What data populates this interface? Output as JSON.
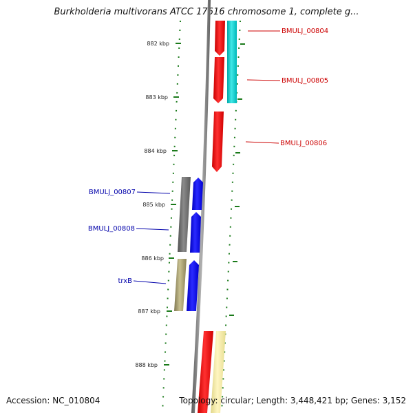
{
  "title": "Burkholderia multivorans ATCC 17616 chromosome 1, complete g...",
  "accession": "Accession: NC_010804",
  "stats": "Topology: circular; Length: 3,448,421 bp; Genes: 3,152",
  "scale_labels": [
    "882 kbp",
    "883 kbp",
    "884 kbp",
    "885 kbp",
    "886 kbp",
    "887 kbp",
    "888 kbp"
  ],
  "genes": [
    {
      "name": "BMULJ_00804",
      "strand": "+",
      "color": "#ff0000",
      "label_color": "#cc0000"
    },
    {
      "name": "BMULJ_00805",
      "strand": "+",
      "color": "#ff0000",
      "label_color": "#cc0000"
    },
    {
      "name": "BMULJ_00806",
      "strand": "+",
      "color": "#ff0000",
      "label_color": "#cc0000"
    },
    {
      "name": "BMULJ_00807",
      "strand": "-",
      "color": "#0000ff",
      "label_color": "#0000aa"
    },
    {
      "name": "BMULJ_00808",
      "strand": "-",
      "color": "#0000ff",
      "label_color": "#0000aa"
    },
    {
      "name": "trxB",
      "strand": "-",
      "color": "#0000ff",
      "label_color": "#0000aa"
    }
  ],
  "feature_colors": {
    "cds_forward": "#ff0000",
    "cds_reverse": "#0000ff",
    "cyan": "#00c8c8",
    "gray": "#6e6e6e",
    "olive": "#a8a070",
    "yellow": "#f0e6a0",
    "backbone": "#7a7a7a",
    "ticks": "#1a7a1a"
  }
}
